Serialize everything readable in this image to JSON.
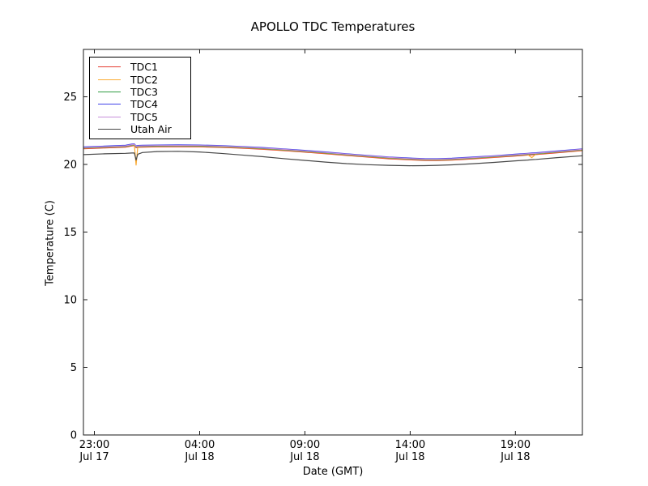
{
  "figure": {
    "background": "#ffffff",
    "spine_color": "#1a1a1a"
  },
  "chart_data": {
    "type": "line",
    "title": "APOLLO TDC Temperatures",
    "xlabel": "Date (GMT)",
    "ylabel": "Temperature (C)",
    "grid": false,
    "legend_position": "upper left",
    "ylim": [
      0,
      28.5
    ],
    "yticks": [
      0,
      5,
      10,
      15,
      20,
      25
    ],
    "xlim_hours": [
      0,
      23.7
    ],
    "xticks": [
      {
        "t": 0.52,
        "time": "23:00",
        "date": "Jul 17"
      },
      {
        "t": 5.52,
        "time": "04:00",
        "date": "Jul 18"
      },
      {
        "t": 10.52,
        "time": "09:00",
        "date": "Jul 18"
      },
      {
        "t": 15.52,
        "time": "14:00",
        "date": "Jul 18"
      },
      {
        "t": 20.52,
        "time": "19:00",
        "date": "Jul 18"
      }
    ],
    "x_hours": [
      0,
      1,
      2,
      2.3,
      2.42,
      2.5,
      2.58,
      2.8,
      3.5,
      4.5,
      5.5,
      6.5,
      7.5,
      8.5,
      9.5,
      10.5,
      11.5,
      12.5,
      13.5,
      14.5,
      15.5,
      16.2,
      16.8,
      17.5,
      18.5,
      19.5,
      20.5,
      21.1,
      21.3,
      21.5,
      22.5,
      23.7
    ],
    "series": [
      {
        "name": "TDC1",
        "color": "#e53c30",
        "values": [
          21.16,
          21.22,
          21.28,
          21.37,
          21.39,
          21.24,
          21.27,
          21.28,
          21.3,
          21.31,
          21.3,
          21.26,
          21.2,
          21.12,
          21.02,
          20.91,
          20.79,
          20.66,
          20.54,
          20.42,
          20.34,
          20.3,
          20.29,
          20.32,
          20.41,
          20.51,
          20.62,
          20.69,
          20.71,
          20.73,
          20.86,
          21.02
        ]
      },
      {
        "name": "TDC2",
        "color": "#fbab33",
        "values": [
          21.2,
          21.26,
          21.32,
          21.41,
          21.43,
          19.95,
          21.31,
          21.32,
          21.34,
          21.35,
          21.34,
          21.3,
          21.24,
          21.16,
          21.06,
          20.95,
          20.83,
          20.7,
          20.58,
          20.46,
          20.38,
          20.34,
          20.33,
          20.36,
          20.45,
          20.55,
          20.66,
          20.73,
          20.5,
          20.77,
          20.9,
          21.06
        ]
      },
      {
        "name": "TDC3",
        "color": "#2f9b41",
        "values": [
          21.22,
          21.28,
          21.34,
          21.43,
          21.45,
          21.3,
          21.33,
          21.34,
          21.36,
          21.37,
          21.36,
          21.32,
          21.26,
          21.18,
          21.08,
          20.97,
          20.85,
          20.72,
          20.6,
          20.48,
          20.4,
          20.36,
          20.35,
          20.38,
          20.47,
          20.57,
          20.68,
          20.75,
          20.77,
          20.79,
          20.92,
          21.08
        ]
      },
      {
        "name": "TDC4",
        "color": "#4143e8",
        "values": [
          21.29,
          21.35,
          21.41,
          21.5,
          21.52,
          21.37,
          21.4,
          21.41,
          21.43,
          21.44,
          21.43,
          21.39,
          21.33,
          21.25,
          21.15,
          21.04,
          20.92,
          20.79,
          20.67,
          20.55,
          20.47,
          20.43,
          20.42,
          20.45,
          20.54,
          20.64,
          20.75,
          20.82,
          20.84,
          20.86,
          20.99,
          21.15
        ]
      },
      {
        "name": "TDC5",
        "color": "#c78fdb",
        "values": [
          21.25,
          21.31,
          21.37,
          21.46,
          21.48,
          21.33,
          21.36,
          21.37,
          21.39,
          21.4,
          21.39,
          21.35,
          21.29,
          21.21,
          21.11,
          21.0,
          20.88,
          20.75,
          20.63,
          20.51,
          20.43,
          20.39,
          20.38,
          20.41,
          20.5,
          20.6,
          20.71,
          20.78,
          20.8,
          20.82,
          20.95,
          21.11
        ]
      },
      {
        "name": "Utah Air",
        "color": "#474747",
        "values": [
          20.72,
          20.78,
          20.82,
          20.84,
          20.85,
          20.32,
          20.75,
          20.88,
          20.95,
          20.97,
          20.92,
          20.82,
          20.7,
          20.57,
          20.43,
          20.3,
          20.17,
          20.06,
          19.98,
          19.93,
          19.9,
          19.91,
          19.93,
          19.97,
          20.05,
          20.15,
          20.26,
          20.32,
          20.35,
          20.37,
          20.5,
          20.64
        ]
      }
    ]
  }
}
